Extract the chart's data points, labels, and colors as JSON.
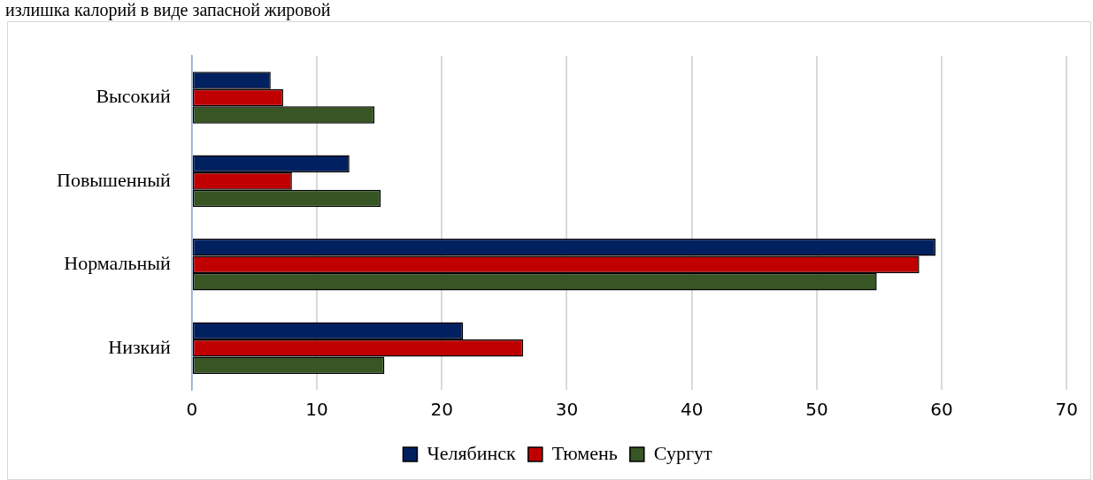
{
  "chart_data": {
    "type": "bar",
    "orientation": "horizontal",
    "annotations": [
      "излишка калорий в виде запасной жировой"
    ],
    "categories": [
      "Высокий",
      "Повышенный",
      "Нормальный",
      "Низкий"
    ],
    "series": [
      {
        "name": "Челябинск",
        "color": "#002060",
        "values": [
          6.3,
          12.6,
          59.5,
          21.7
        ]
      },
      {
        "name": "Тюмень",
        "color": "#c00000",
        "values": [
          7.3,
          8.0,
          58.2,
          26.5
        ]
      },
      {
        "name": "Сургут",
        "color": "#375623",
        "values": [
          14.6,
          15.1,
          54.8,
          15.4
        ]
      }
    ],
    "xlim": [
      0,
      70
    ],
    "xticks": [
      0,
      10,
      20,
      30,
      40,
      50,
      60,
      70
    ],
    "grid": "x",
    "legend": "bottom"
  }
}
